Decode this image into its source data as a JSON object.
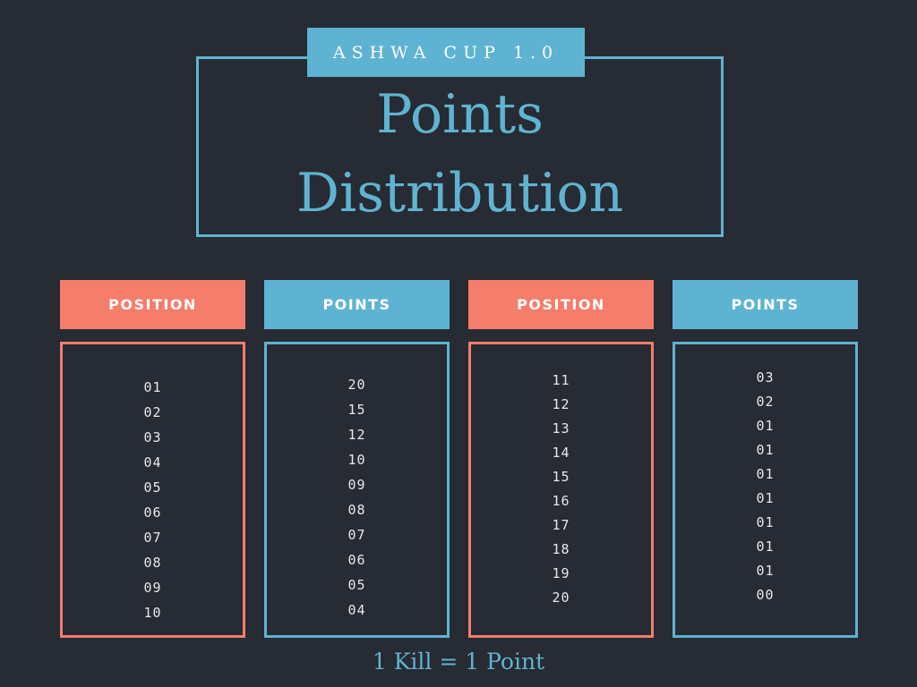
{
  "header": {
    "event_badge": "ASHWA CUP 1.0",
    "title_line1": "Points",
    "title_line2": "Distribution"
  },
  "table": {
    "columns": [
      {
        "header": "POSITION",
        "values": [
          "01",
          "02",
          "03",
          "04",
          "05",
          "06",
          "07",
          "08",
          "09",
          "10"
        ]
      },
      {
        "header": "POINTS",
        "values": [
          "20",
          "15",
          "12",
          "10",
          "09",
          "08",
          "07",
          "06",
          "05",
          "04"
        ]
      },
      {
        "header": "POSITION",
        "values": [
          "11",
          "12",
          "13",
          "14",
          "15",
          "16",
          "17",
          "18",
          "19",
          "20"
        ]
      },
      {
        "header": "POINTS",
        "values": [
          "03",
          "02",
          "01",
          "01",
          "01",
          "01",
          "01",
          "01",
          "01",
          "00"
        ]
      }
    ]
  },
  "footer": {
    "note": "1 Kill = 1 Point"
  },
  "colors": {
    "background": "#272b33",
    "accent_blue": "#5fb3d2",
    "accent_coral": "#f57d6b",
    "text_light": "#e8e8e8"
  }
}
